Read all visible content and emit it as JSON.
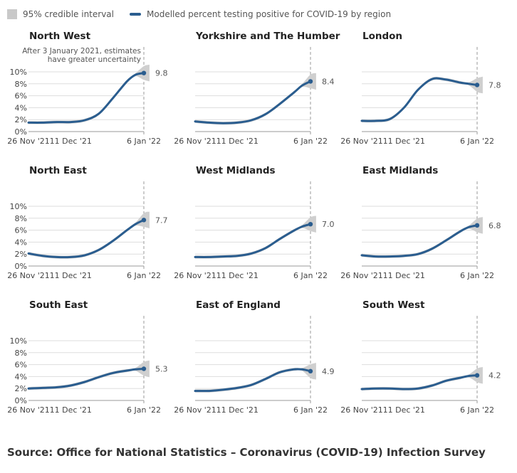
{
  "legend": {
    "interval_label": "95% credible interval",
    "line_label": "Modelled percent testing positive for COVID-19 by region"
  },
  "source": "Source: Office for National Statistics – Coronavirus (COVID-19) Infection Survey",
  "colors": {
    "line": "#2a5d8f",
    "band": "#cfcfcf",
    "grid": "#dddddd"
  },
  "chart_data": [
    {
      "type": "line",
      "title": "North West",
      "x_ticks": [
        "26 Nov '21",
        "11 Dec '21",
        "6 Jan '22"
      ],
      "y_ticks": [
        "0%",
        "2%",
        "4%",
        "6%",
        "8%",
        "10%"
      ],
      "ylim": [
        0,
        10
      ],
      "annotation": [
        "After 3 January 2021, estimates",
        "have greater uncertainty"
      ],
      "end_label": "9.8",
      "x": [
        "2021-11-26",
        "2021-12-01",
        "2021-12-06",
        "2021-12-11",
        "2021-12-16",
        "2021-12-21",
        "2021-12-26",
        "2021-12-31",
        "2022-01-03",
        "2022-01-06"
      ],
      "values": [
        1.5,
        1.5,
        1.6,
        1.6,
        1.9,
        3.0,
        5.6,
        8.4,
        9.5,
        9.8
      ]
    },
    {
      "type": "line",
      "title": "Yorkshire and The Humber",
      "x_ticks": [
        "26 Nov '21",
        "11 Dec '21",
        "6 Jan '22"
      ],
      "ylim": [
        0,
        10
      ],
      "end_label": "8.4",
      "x": [
        "2021-11-26",
        "2021-12-01",
        "2021-12-06",
        "2021-12-11",
        "2021-12-16",
        "2021-12-21",
        "2021-12-26",
        "2021-12-31",
        "2022-01-03",
        "2022-01-06"
      ],
      "values": [
        1.7,
        1.5,
        1.4,
        1.5,
        1.9,
        2.9,
        4.6,
        6.5,
        7.7,
        8.4
      ]
    },
    {
      "type": "line",
      "title": "London",
      "x_ticks": [
        "26 Nov '21",
        "11 Dec '21",
        "6 Jan '22"
      ],
      "ylim": [
        0,
        10
      ],
      "end_label": "7.8",
      "x": [
        "2021-11-26",
        "2021-12-01",
        "2021-12-06",
        "2021-12-11",
        "2021-12-16",
        "2021-12-21",
        "2021-12-26",
        "2021-12-31",
        "2022-01-03",
        "2022-01-06"
      ],
      "values": [
        1.8,
        1.8,
        2.1,
        4.0,
        7.0,
        8.8,
        8.7,
        8.2,
        8.0,
        7.8
      ]
    },
    {
      "type": "line",
      "title": "North East",
      "x_ticks": [
        "26 Nov '21",
        "11 Dec '21",
        "6 Jan '22"
      ],
      "y_ticks": [
        "0%",
        "2%",
        "4%",
        "6%",
        "8%",
        "10%"
      ],
      "ylim": [
        0,
        10
      ],
      "end_label": "7.7",
      "x": [
        "2021-11-26",
        "2021-12-01",
        "2021-12-06",
        "2021-12-11",
        "2021-12-16",
        "2021-12-21",
        "2021-12-26",
        "2021-12-31",
        "2022-01-03",
        "2022-01-06"
      ],
      "values": [
        2.1,
        1.7,
        1.5,
        1.5,
        1.8,
        2.7,
        4.2,
        6.0,
        7.0,
        7.7
      ]
    },
    {
      "type": "line",
      "title": "West Midlands",
      "x_ticks": [
        "26 Nov '21",
        "11 Dec '21",
        "6 Jan '22"
      ],
      "ylim": [
        0,
        10
      ],
      "end_label": "7.0",
      "x": [
        "2021-11-26",
        "2021-12-01",
        "2021-12-06",
        "2021-12-11",
        "2021-12-16",
        "2021-12-21",
        "2021-12-26",
        "2021-12-31",
        "2022-01-03",
        "2022-01-06"
      ],
      "values": [
        1.5,
        1.5,
        1.6,
        1.7,
        2.1,
        3.0,
        4.5,
        5.9,
        6.6,
        7.0
      ]
    },
    {
      "type": "line",
      "title": "East Midlands",
      "x_ticks": [
        "26 Nov '21",
        "11 Dec '21",
        "6 Jan '22"
      ],
      "ylim": [
        0,
        10
      ],
      "end_label": "6.8",
      "x": [
        "2021-11-26",
        "2021-12-01",
        "2021-12-06",
        "2021-12-11",
        "2021-12-16",
        "2021-12-21",
        "2021-12-26",
        "2021-12-31",
        "2022-01-03",
        "2022-01-06"
      ],
      "values": [
        1.8,
        1.6,
        1.6,
        1.7,
        2.0,
        2.9,
        4.3,
        5.8,
        6.5,
        6.8
      ]
    },
    {
      "type": "line",
      "title": "South East",
      "x_ticks": [
        "26 Nov '21",
        "11 Dec '21",
        "6 Jan '22"
      ],
      "y_ticks": [
        "0%",
        "2%",
        "4%",
        "6%",
        "8%",
        "10%"
      ],
      "ylim": [
        0,
        10
      ],
      "end_label": "5.3",
      "x": [
        "2021-11-26",
        "2021-12-01",
        "2021-12-06",
        "2021-12-11",
        "2021-12-16",
        "2021-12-21",
        "2021-12-26",
        "2021-12-31",
        "2022-01-03",
        "2022-01-06"
      ],
      "values": [
        2.0,
        2.1,
        2.2,
        2.5,
        3.1,
        3.9,
        4.6,
        5.0,
        5.2,
        5.3
      ]
    },
    {
      "type": "line",
      "title": "East of England",
      "x_ticks": [
        "26 Nov '21",
        "11 Dec '21",
        "6 Jan '22"
      ],
      "ylim": [
        0,
        10
      ],
      "end_label": "4.9",
      "x": [
        "2021-11-26",
        "2021-12-01",
        "2021-12-06",
        "2021-12-11",
        "2021-12-16",
        "2021-12-21",
        "2021-12-26",
        "2021-12-31",
        "2022-01-03",
        "2022-01-06"
      ],
      "values": [
        1.6,
        1.6,
        1.8,
        2.1,
        2.6,
        3.6,
        4.7,
        5.2,
        5.2,
        4.9
      ]
    },
    {
      "type": "line",
      "title": "South West",
      "x_ticks": [
        "26 Nov '21",
        "11 Dec '21",
        "6 Jan '22"
      ],
      "ylim": [
        0,
        10
      ],
      "end_label": "4.2",
      "x": [
        "2021-11-26",
        "2021-12-01",
        "2021-12-06",
        "2021-12-11",
        "2021-12-16",
        "2021-12-21",
        "2021-12-26",
        "2021-12-31",
        "2022-01-03",
        "2022-01-06"
      ],
      "values": [
        1.9,
        2.0,
        2.0,
        1.9,
        2.0,
        2.5,
        3.3,
        3.8,
        4.1,
        4.2
      ]
    }
  ]
}
